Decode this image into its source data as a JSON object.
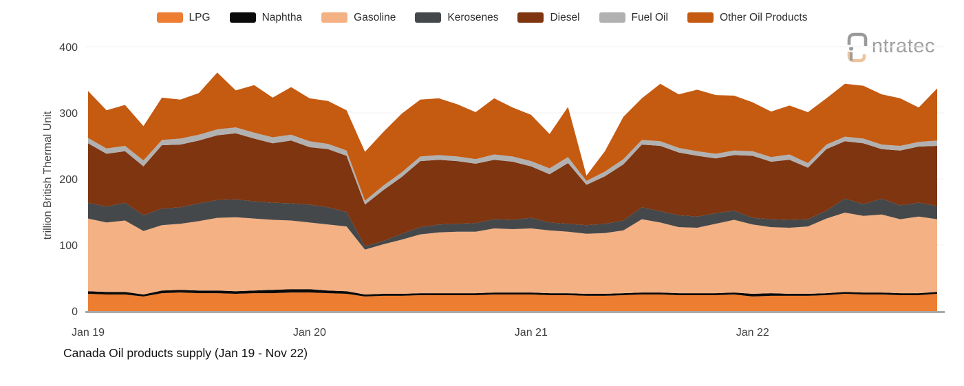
{
  "legend": {
    "items": [
      {
        "label": "LPG",
        "color": "#ED7D31"
      },
      {
        "label": "Naphtha",
        "color": "#0A0A0A"
      },
      {
        "label": "Gasoline",
        "color": "#F4B183"
      },
      {
        "label": "Kerosenes",
        "color": "#45484B"
      },
      {
        "label": "Diesel",
        "color": "#7E3510"
      },
      {
        "label": "Fuel Oil",
        "color": "#B1B1B1"
      },
      {
        "label": "Other Oil Products",
        "color": "#C55A11"
      }
    ]
  },
  "logo": {
    "name": "intratec",
    "visible_text": "ntratec",
    "gray_color": "#9a9a9a",
    "peach_color": "#ecc39c"
  },
  "chart_data": {
    "type": "area",
    "stacked": true,
    "title": "Canada Oil products supply (Jan 19 - Nov 22)",
    "ylabel": "trillion British Thermal Unit",
    "unit": "trillion British Thermal Unit",
    "ylim": [
      0,
      400
    ],
    "yticks": [
      0,
      100,
      200,
      300,
      400
    ],
    "grid": "faint-horizontal",
    "legend_position": "top-center",
    "x_months": [
      "Jan 19",
      "Feb 19",
      "Mar 19",
      "Apr 19",
      "May 19",
      "Jun 19",
      "Jul 19",
      "Aug 19",
      "Sep 19",
      "Oct 19",
      "Nov 19",
      "Dec 19",
      "Jan 20",
      "Feb 20",
      "Mar 20",
      "Apr 20",
      "May 20",
      "Jun 20",
      "Jul 20",
      "Aug 20",
      "Sep 20",
      "Oct 20",
      "Nov 20",
      "Dec 20",
      "Jan 21",
      "Feb 21",
      "Mar 21",
      "Apr 21",
      "May 21",
      "Jun 21",
      "Jul 21",
      "Aug 21",
      "Sep 21",
      "Oct 21",
      "Nov 21",
      "Dec 21",
      "Jan 22",
      "Feb 22",
      "Mar 22",
      "Apr 22",
      "May 22",
      "Jun 22",
      "Jul 22",
      "Aug 22",
      "Sep 22",
      "Oct 22",
      "Nov 22"
    ],
    "xticks": [
      {
        "label": "Jan 19",
        "month_index": 0
      },
      {
        "label": "Jan 20",
        "month_index": 12
      },
      {
        "label": "Jan 21",
        "month_index": 24
      },
      {
        "label": "Jan 22",
        "month_index": 36
      }
    ],
    "series": [
      {
        "name": "LPG",
        "color": "#ED7D31",
        "values": [
          26,
          25,
          25,
          22,
          27,
          28,
          27,
          27,
          26,
          27,
          27,
          28,
          28,
          27,
          26,
          22,
          23,
          23,
          24,
          24,
          24,
          24,
          25,
          25,
          25,
          24,
          24,
          23,
          23,
          24,
          25,
          25,
          24,
          24,
          24,
          25,
          22,
          23,
          23,
          23,
          24,
          26,
          25,
          25,
          24,
          24,
          26
        ]
      },
      {
        "name": "Naphtha",
        "color": "#0A0A0A",
        "values": [
          4,
          4,
          4,
          3,
          4,
          4,
          4,
          4,
          4,
          4,
          5,
          5,
          5,
          4,
          4,
          3,
          3,
          3,
          3,
          3,
          3,
          3,
          3,
          3,
          3,
          3,
          3,
          3,
          3,
          3,
          3,
          3,
          3,
          3,
          3,
          3,
          4,
          4,
          3,
          3,
          3,
          3,
          3,
          3,
          3,
          3,
          3
        ]
      },
      {
        "name": "Gasoline",
        "color": "#F4B183",
        "values": [
          110,
          105,
          108,
          96,
          99,
          100,
          105,
          110,
          112,
          109,
          106,
          104,
          101,
          100,
          98,
          68,
          75,
          82,
          89,
          92,
          93,
          93,
          97,
          96,
          97,
          95,
          93,
          91,
          92,
          95,
          111,
          106,
          100,
          99,
          105,
          110,
          105,
          100,
          100,
          102,
          113,
          120,
          116,
          118,
          112,
          116,
          110
        ]
      },
      {
        "name": "Kerosenes",
        "color": "#45484B",
        "values": [
          24,
          24,
          27,
          24,
          25,
          25,
          27,
          27,
          27,
          26,
          26,
          26,
          27,
          26,
          22,
          5,
          5,
          9,
          11,
          12,
          12,
          13,
          14,
          14,
          16,
          12,
          12,
          13,
          14,
          15,
          18,
          17,
          18,
          17,
          16,
          14,
          10,
          12,
          12,
          11,
          12,
          21,
          18,
          24,
          21,
          21,
          20
        ]
      },
      {
        "name": "Diesel",
        "color": "#7E3510",
        "values": [
          90,
          80,
          78,
          74,
          96,
          95,
          95,
          98,
          100,
          95,
          90,
          95,
          87,
          88,
          85,
          63,
          77,
          86,
          100,
          98,
          95,
          90,
          90,
          88,
          78,
          73,
          92,
          61,
          72,
          85,
          95,
          99,
          95,
          92,
          83,
          84,
          94,
          87,
          91,
          78,
          93,
          87,
          92,
          75,
          83,
          85,
          91
        ]
      },
      {
        "name": "Fuel Oil",
        "color": "#B1B1B1",
        "values": [
          8,
          8,
          8,
          9,
          8,
          9,
          9,
          9,
          9,
          9,
          9,
          9,
          9,
          8,
          8,
          6,
          7,
          7,
          7,
          7,
          7,
          7,
          8,
          8,
          8,
          9,
          9,
          6,
          7,
          8,
          7,
          7,
          7,
          7,
          7,
          7,
          7,
          7,
          8,
          7,
          7,
          7,
          7,
          7,
          7,
          7,
          8
        ]
      },
      {
        "name": "Other Oil Products",
        "color": "#C55A11",
        "values": [
          71,
          58,
          62,
          52,
          64,
          59,
          63,
          86,
          56,
          72,
          60,
          72,
          65,
          65,
          61,
          74,
          81,
          89,
          86,
          86,
          79,
          71,
          85,
          74,
          70,
          52,
          76,
          8,
          31,
          64,
          63,
          87,
          81,
          93,
          89,
          83,
          74,
          69,
          74,
          77,
          70,
          80,
          80,
          76,
          72,
          52,
          79
        ]
      }
    ]
  }
}
